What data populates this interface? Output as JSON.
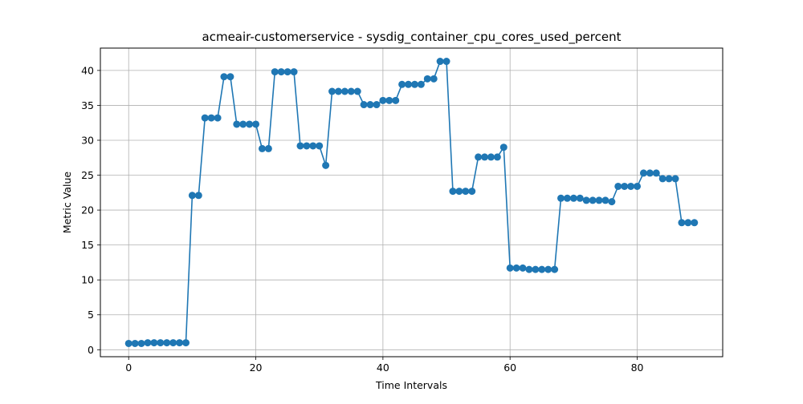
{
  "chart_data": {
    "type": "line",
    "title": "acmeair-customerservice - sysdig_container_cpu_cores_used_percent",
    "xlabel": "Time Intervals",
    "ylabel": "Metric Value",
    "xlim": [
      -4.45,
      93.45
    ],
    "ylim": [
      -1.0,
      43.2
    ],
    "xticks": [
      0,
      20,
      40,
      60,
      80
    ],
    "yticks": [
      0,
      5,
      10,
      15,
      20,
      25,
      30,
      35,
      40
    ],
    "grid": true,
    "line_color": "#1f77b4",
    "series": [
      {
        "x": [
          0,
          1,
          2,
          3,
          4,
          5,
          6,
          7,
          8,
          9,
          10,
          11,
          12,
          13,
          14,
          15,
          16,
          17,
          18,
          19,
          20,
          21,
          22,
          23,
          24,
          25,
          26,
          27,
          28,
          29,
          30,
          31,
          32,
          33,
          34,
          35,
          36,
          37,
          38,
          39,
          40,
          41,
          42,
          43,
          44,
          45,
          46,
          47,
          48,
          49,
          50,
          51,
          52,
          53,
          54,
          55,
          56,
          57,
          58,
          59,
          60,
          61,
          62,
          63,
          64,
          65,
          66,
          67,
          68,
          69,
          70,
          71,
          72,
          73,
          74,
          75,
          76,
          77,
          78,
          79,
          80,
          81,
          82,
          83,
          84,
          85,
          86,
          87,
          88,
          89
        ],
        "values": [
          0.9,
          0.9,
          0.9,
          1.0,
          1.0,
          1.0,
          1.0,
          1.0,
          1.0,
          1.0,
          22.1,
          22.1,
          33.2,
          33.2,
          33.2,
          39.1,
          39.1,
          32.3,
          32.3,
          32.3,
          32.3,
          28.8,
          28.8,
          39.8,
          39.8,
          39.8,
          39.8,
          29.2,
          29.2,
          29.2,
          29.2,
          26.4,
          37.0,
          37.0,
          37.0,
          37.0,
          37.0,
          35.1,
          35.1,
          35.1,
          35.7,
          35.7,
          35.7,
          38.0,
          38.0,
          38.0,
          38.0,
          38.8,
          38.8,
          41.3,
          41.3,
          22.7,
          22.7,
          22.7,
          22.7,
          27.6,
          27.6,
          27.6,
          27.6,
          29.0,
          11.7,
          11.7,
          11.7,
          11.5,
          11.5,
          11.5,
          11.5,
          11.5,
          21.7,
          21.7,
          21.7,
          21.7,
          21.4,
          21.4,
          21.4,
          21.4,
          21.2,
          23.4,
          23.4,
          23.4,
          23.4,
          25.3,
          25.3,
          25.3,
          24.5,
          24.5,
          24.5,
          18.2,
          18.2,
          18.2
        ]
      }
    ]
  }
}
